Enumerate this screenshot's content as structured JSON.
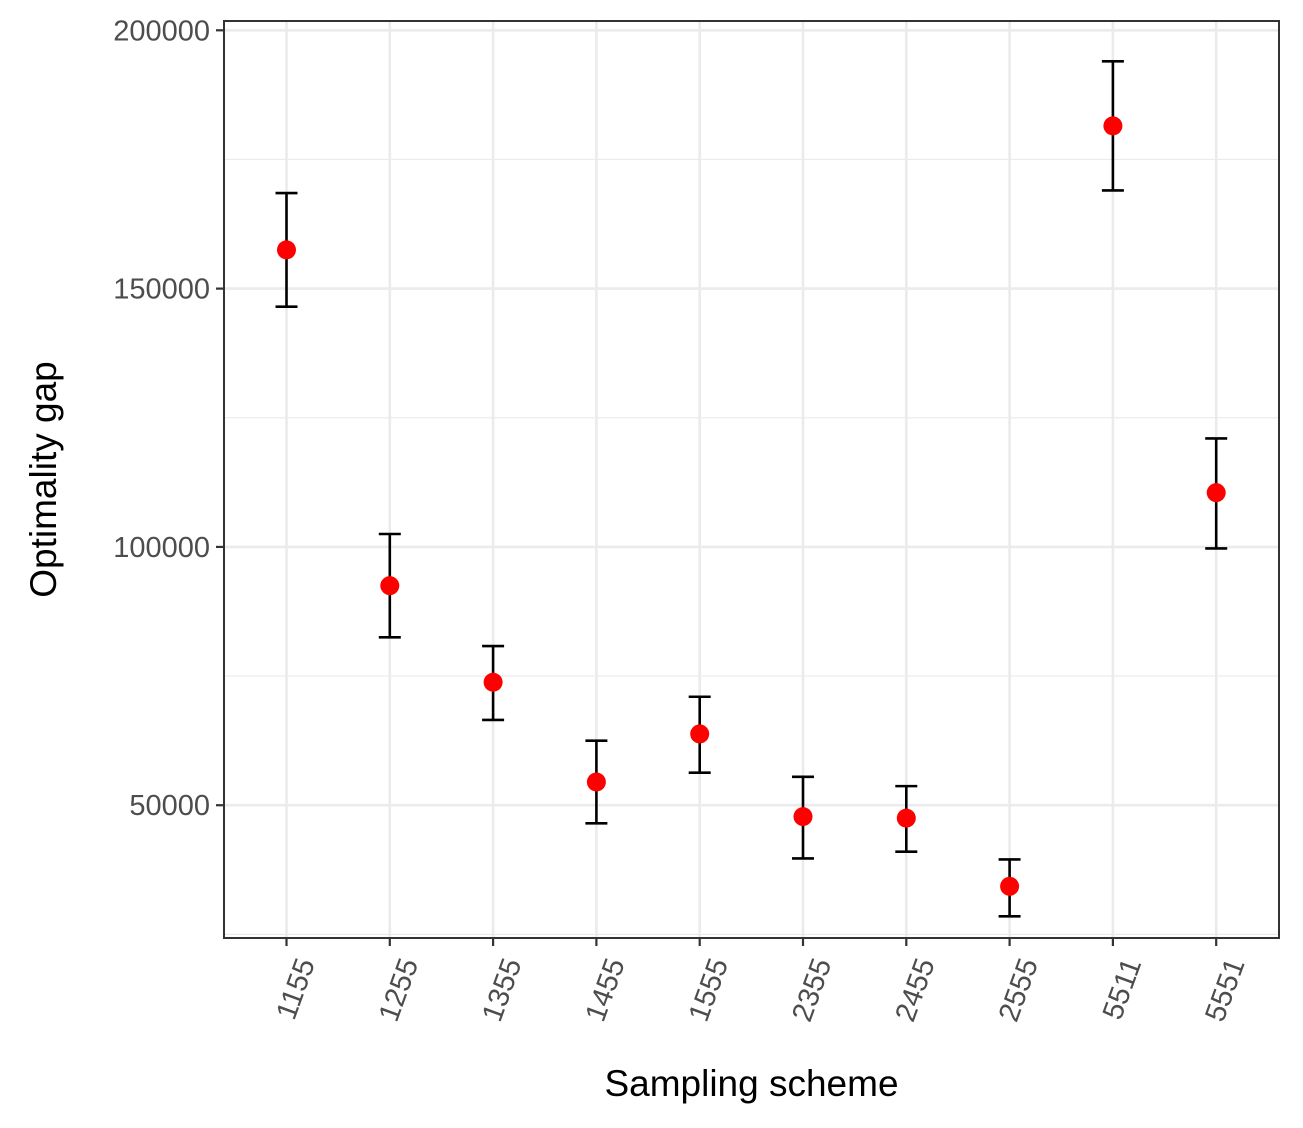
{
  "chart_data": {
    "type": "scatter",
    "xlabel": "Sampling scheme",
    "ylabel": "Optimality gap",
    "categories": [
      "1155",
      "1255",
      "1355",
      "1455",
      "1555",
      "2355",
      "2455",
      "2555",
      "5511",
      "5551"
    ],
    "series": [
      {
        "values": [
          157500,
          92500,
          73800,
          54500,
          63800,
          47800,
          47500,
          34300,
          181500,
          110500
        ],
        "err_low": [
          146500,
          82500,
          66500,
          46500,
          56300,
          39700,
          41000,
          28500,
          169000,
          99700
        ],
        "err_high": [
          168500,
          102500,
          80800,
          62500,
          71000,
          55500,
          53700,
          39500,
          194000,
          121000
        ],
        "point_color": "#ff0000",
        "errorbar_color": "#000000"
      }
    ],
    "y_ticks": [
      50000,
      100000,
      150000,
      200000
    ],
    "y_tick_labels": [
      "50000",
      "100000",
      "150000",
      "200000"
    ],
    "ylim": [
      24300,
      201800
    ],
    "grid": true,
    "panel_border_color": "#333333",
    "grid_color": "#ebebeb"
  }
}
